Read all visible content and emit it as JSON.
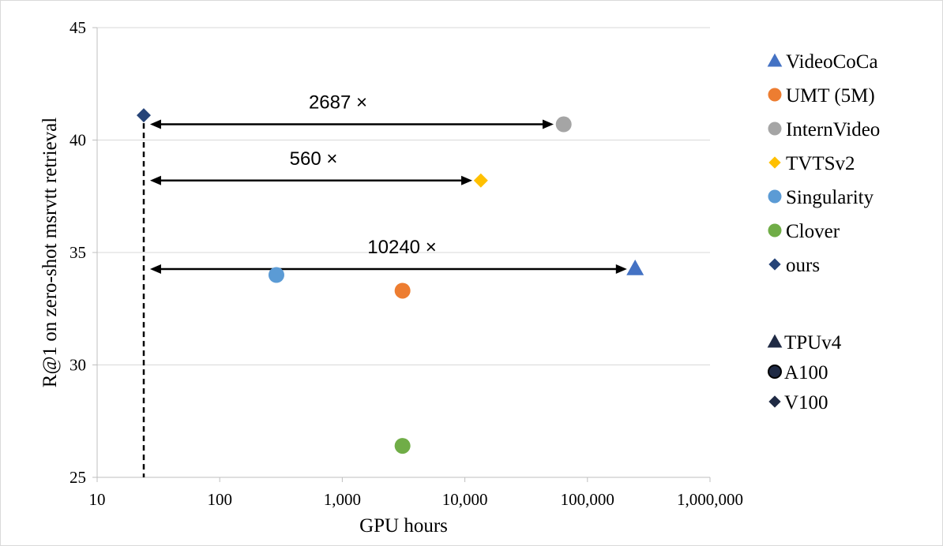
{
  "chart_data": {
    "type": "scatter",
    "xlabel": "GPU hours",
    "ylabel": "R@1 on zero-shot msrvtt retrieval",
    "x_scale": "log",
    "xlim": [
      10,
      1000000
    ],
    "ylim": [
      25,
      45
    ],
    "x_ticks": [
      10,
      100,
      1000,
      10000,
      100000,
      1000000
    ],
    "x_tick_labels": [
      "10",
      "100",
      "1,000",
      "10,000",
      "100,000",
      "1,000,000"
    ],
    "y_ticks": [
      25,
      30,
      35,
      40,
      45
    ],
    "y_tick_labels": [
      "25",
      "30",
      "35",
      "40",
      "45"
    ],
    "grid": "horizontal",
    "legend_position": "right",
    "series": [
      {
        "name": "VideoCoCa",
        "marker": "triangle",
        "color": "#4472c4",
        "x": 245000,
        "y": 34.3
      },
      {
        "name": "UMT (5M)",
        "marker": "circle",
        "color": "#ed7d31",
        "x": 3100,
        "y": 33.3
      },
      {
        "name": "InternVideo",
        "marker": "circle",
        "color": "#a5a5a5",
        "x": 64000,
        "y": 40.7
      },
      {
        "name": "TVTSv2",
        "marker": "diamond",
        "color": "#ffc000",
        "x": 13500,
        "y": 38.2
      },
      {
        "name": "Singularity",
        "marker": "circle",
        "color": "#5b9bd5",
        "x": 290,
        "y": 34.0
      },
      {
        "name": "Clover",
        "marker": "circle",
        "color": "#70ad47",
        "x": 3100,
        "y": 26.4
      },
      {
        "name": "ours",
        "marker": "diamond",
        "color": "#264478",
        "x": 24,
        "y": 41.1
      }
    ],
    "hardware_legend": [
      {
        "name": "TPUv4",
        "marker": "triangle"
      },
      {
        "name": "A100",
        "marker": "circle"
      },
      {
        "name": "V100",
        "marker": "diamond"
      }
    ],
    "annotations": [
      {
        "text": "2687 ×",
        "x_from": 27,
        "x_to": 53000,
        "y": 40.7
      },
      {
        "text": "560 ×",
        "x_from": 27,
        "x_to": 11500,
        "y": 38.2
      },
      {
        "text": "10240 ×",
        "x_from": 27,
        "x_to": 210000,
        "y": 34.3
      }
    ],
    "reference_line": {
      "x": 24,
      "style": "dashed"
    }
  }
}
